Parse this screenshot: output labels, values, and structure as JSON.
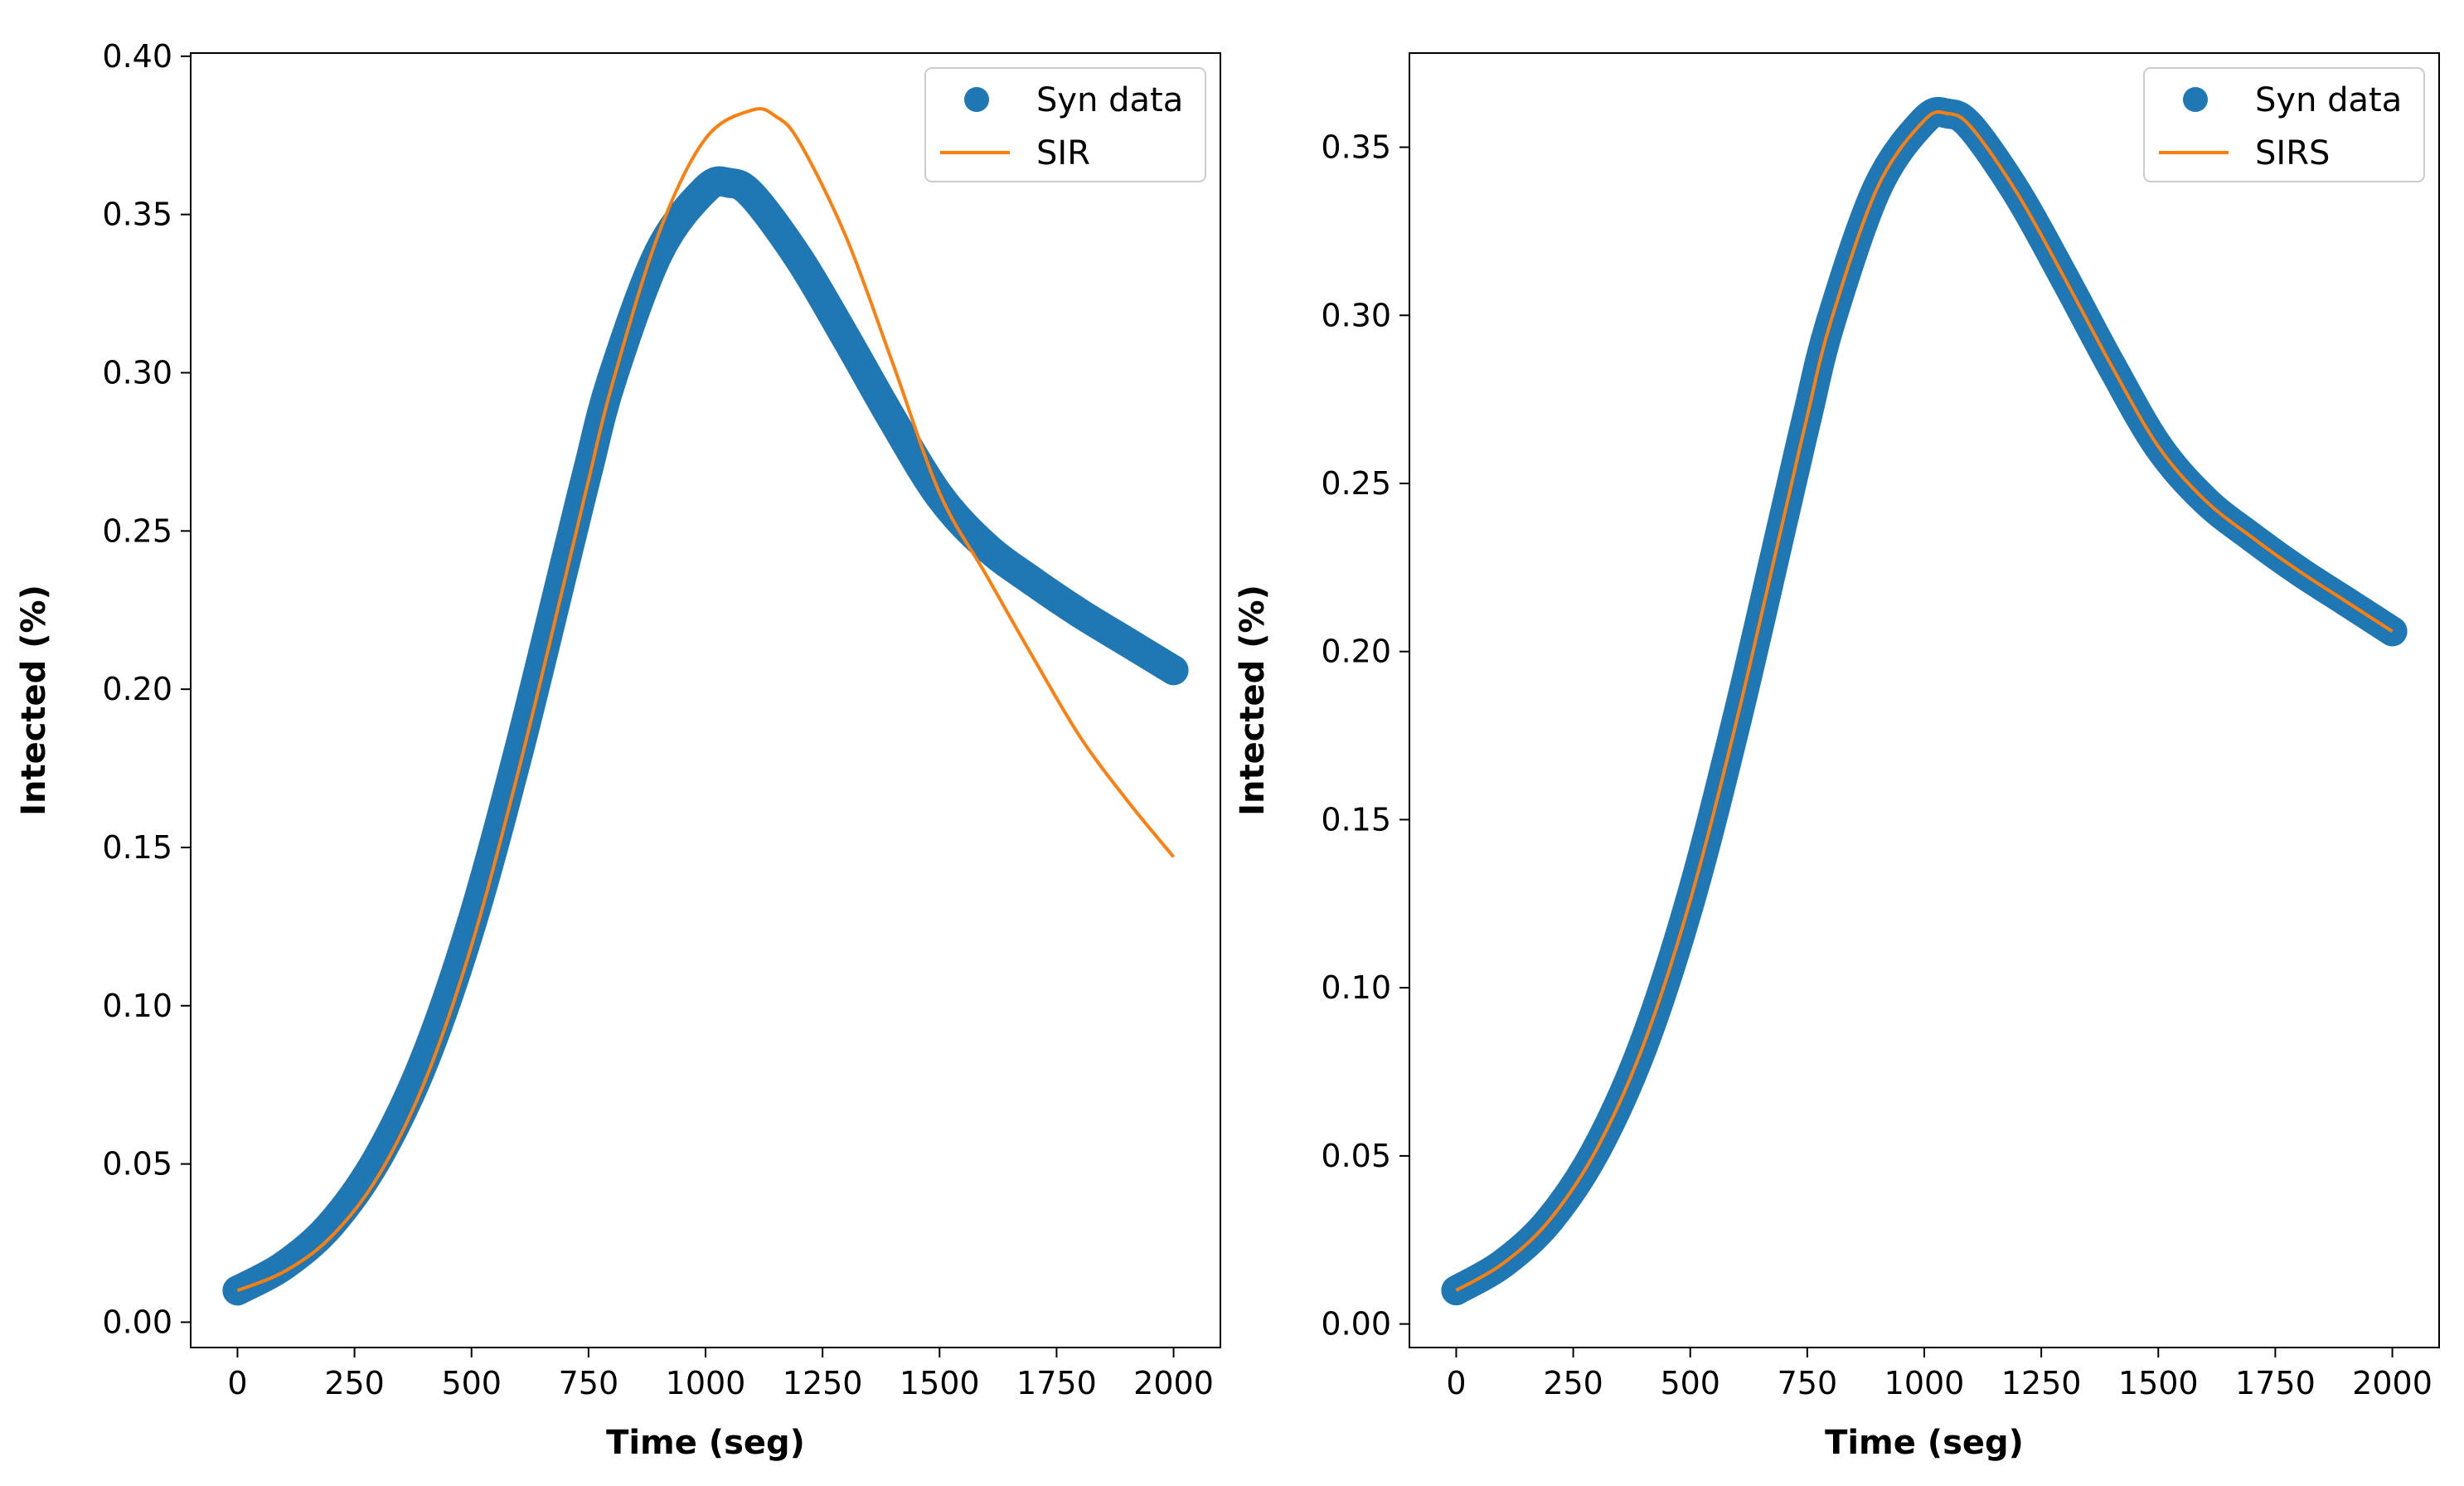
{
  "chart_data": [
    {
      "type": "line",
      "xlabel": "Time (seg)",
      "ylabel": "Intected (%)",
      "xlim": [
        -100,
        2100
      ],
      "ylim": [
        -0.008,
        0.401
      ],
      "xticks": [
        0,
        250,
        500,
        750,
        1000,
        1250,
        1500,
        1750,
        2000
      ],
      "xtick_labels": [
        "0",
        "250",
        "500",
        "750",
        "1000",
        "1250",
        "1500",
        "1750",
        "2000"
      ],
      "yticks": [
        0.0,
        0.05,
        0.1,
        0.15,
        0.2,
        0.25,
        0.3,
        0.35,
        0.4
      ],
      "ytick_labels": [
        "0.00",
        "0.05",
        "0.10",
        "0.15",
        "0.20",
        "0.25",
        "0.30",
        "0.35",
        "0.40"
      ],
      "legend_position": "top-right",
      "series": [
        {
          "name": "Syn data",
          "style": "markers",
          "color": "#1f77b4",
          "x": [
            0,
            100,
            200,
            300,
            400,
            500,
            600,
            700,
            750,
            800,
            900,
            1000,
            1050,
            1100,
            1200,
            1300,
            1400,
            1500,
            1600,
            1700,
            1800,
            1900,
            2000
          ],
          "y": [
            0.01,
            0.018,
            0.031,
            0.052,
            0.083,
            0.126,
            0.18,
            0.24,
            0.27,
            0.298,
            0.338,
            0.358,
            0.36,
            0.356,
            0.336,
            0.311,
            0.285,
            0.261,
            0.245,
            0.234,
            0.224,
            0.215,
            0.206
          ]
        },
        {
          "name": "SIR",
          "style": "line",
          "color": "#ff7f0e",
          "x": [
            0,
            100,
            200,
            300,
            400,
            500,
            600,
            700,
            750,
            800,
            900,
            1000,
            1100,
            1150,
            1200,
            1300,
            1400,
            1500,
            1600,
            1700,
            1800,
            1900,
            2000
          ],
          "y": [
            0.01,
            0.016,
            0.027,
            0.046,
            0.076,
            0.119,
            0.174,
            0.235,
            0.266,
            0.296,
            0.344,
            0.374,
            0.383,
            0.381,
            0.373,
            0.343,
            0.303,
            0.262,
            0.236,
            0.21,
            0.185,
            0.165,
            0.147
          ]
        }
      ]
    },
    {
      "type": "line",
      "xlabel": "Time (seg)",
      "ylabel": "Intected (%)",
      "xlim": [
        -100,
        2100
      ],
      "ylim": [
        -0.007,
        0.378
      ],
      "xticks": [
        0,
        250,
        500,
        750,
        1000,
        1250,
        1500,
        1750,
        2000
      ],
      "xtick_labels": [
        "0",
        "250",
        "500",
        "750",
        "1000",
        "1250",
        "1500",
        "1750",
        "2000"
      ],
      "yticks": [
        0.0,
        0.05,
        0.1,
        0.15,
        0.2,
        0.25,
        0.3,
        0.35
      ],
      "ytick_labels": [
        "0.00",
        "0.05",
        "0.10",
        "0.15",
        "0.20",
        "0.25",
        "0.30",
        "0.35"
      ],
      "legend_position": "top-right",
      "series": [
        {
          "name": "Syn data",
          "style": "markers",
          "color": "#1f77b4",
          "x": [
            0,
            100,
            200,
            300,
            400,
            500,
            600,
            700,
            750,
            800,
            900,
            1000,
            1050,
            1100,
            1200,
            1300,
            1400,
            1500,
            1600,
            1700,
            1800,
            1900,
            2000
          ],
          "y": [
            0.01,
            0.018,
            0.031,
            0.052,
            0.083,
            0.126,
            0.18,
            0.24,
            0.27,
            0.298,
            0.338,
            0.358,
            0.36,
            0.356,
            0.336,
            0.311,
            0.285,
            0.261,
            0.245,
            0.234,
            0.224,
            0.215,
            0.206
          ]
        },
        {
          "name": "SIRS",
          "style": "line",
          "color": "#ff7f0e",
          "x": [
            0,
            100,
            200,
            300,
            400,
            500,
            600,
            700,
            750,
            800,
            900,
            1000,
            1050,
            1100,
            1200,
            1300,
            1400,
            1500,
            1600,
            1700,
            1800,
            1900,
            2000
          ],
          "y": [
            0.01,
            0.018,
            0.031,
            0.052,
            0.083,
            0.126,
            0.18,
            0.24,
            0.27,
            0.298,
            0.338,
            0.358,
            0.36,
            0.356,
            0.336,
            0.311,
            0.285,
            0.261,
            0.245,
            0.234,
            0.224,
            0.215,
            0.206
          ]
        }
      ]
    }
  ]
}
